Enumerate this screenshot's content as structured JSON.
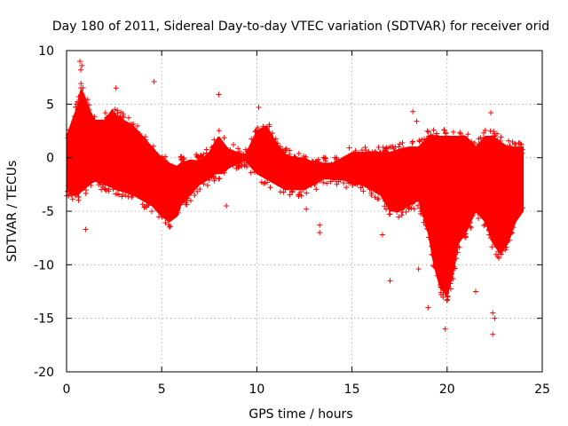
{
  "chart_data": {
    "type": "scatter",
    "title": "Day 180 of 2011, Sidereal Day-to-day VTEC variation (SDTVAR) for receiver orid",
    "xlabel": "GPS time / hours",
    "ylabel": "SDTVAR / TECUs",
    "xlim": [
      0,
      25
    ],
    "ylim": [
      -20,
      10
    ],
    "xticks": [
      0,
      5,
      10,
      15,
      20,
      25
    ],
    "yticks": [
      -20,
      -15,
      -10,
      -5,
      0,
      5,
      10
    ],
    "x_tick_labels": [
      "0",
      "5",
      "10",
      "15",
      "20",
      "25"
    ],
    "y_tick_labels": [
      "-20",
      "-15",
      "-10",
      "-5",
      "0",
      "5",
      "10"
    ],
    "grid": true,
    "marker": "+",
    "color": "#ff0000",
    "dense_band": {
      "description": "envelope of the dense point cloud (GPS hour, lower TECU, upper TECU)",
      "x": [
        0.0,
        0.3,
        0.6,
        0.75,
        0.9,
        1.2,
        1.5,
        2.0,
        2.4,
        2.6,
        3.0,
        3.5,
        4.0,
        4.5,
        5.0,
        5.4,
        5.8,
        6.0,
        6.5,
        7.0,
        7.5,
        7.8,
        8.0,
        8.2,
        8.5,
        9.0,
        9.4,
        10.0,
        10.5,
        11.0,
        11.5,
        12.0,
        12.5,
        13.0,
        13.5,
        14.0,
        14.5,
        15.0,
        15.5,
        16.0,
        16.5,
        17.0,
        17.5,
        18.0,
        18.5,
        19.0,
        19.3,
        19.6,
        20.0,
        20.3,
        20.6,
        21.0,
        21.5,
        22.0,
        22.4,
        22.8,
        23.2,
        23.6,
        24.0
      ],
      "lower": [
        -3.0,
        -3.5,
        -3.5,
        -3.2,
        -3.0,
        -2.5,
        -2.2,
        -2.5,
        -2.8,
        -3.0,
        -3.2,
        -3.5,
        -4.0,
        -4.5,
        -5.5,
        -6.0,
        -5.5,
        -4.5,
        -3.5,
        -2.5,
        -2.0,
        -1.5,
        -1.5,
        -1.5,
        -1.0,
        -0.5,
        -0.3,
        -1.5,
        -2.0,
        -2.5,
        -3.0,
        -3.0,
        -3.0,
        -2.5,
        -2.0,
        -2.0,
        -2.0,
        -2.5,
        -2.5,
        -3.0,
        -3.5,
        -5.0,
        -5.0,
        -4.5,
        -4.0,
        -7.0,
        -10.0,
        -12.0,
        -13.0,
        -11.0,
        -8.0,
        -7.0,
        -5.0,
        -6.0,
        -8.0,
        -9.0,
        -8.0,
        -6.0,
        -5.0
      ],
      "upper": [
        2.0,
        3.5,
        5.0,
        6.5,
        6.0,
        4.5,
        3.5,
        3.5,
        4.5,
        4.0,
        3.5,
        3.0,
        2.0,
        1.0,
        0.0,
        -0.5,
        -0.8,
        -0.5,
        -0.2,
        -0.3,
        0.5,
        1.5,
        2.0,
        1.5,
        0.8,
        0.5,
        0.3,
        2.5,
        3.0,
        1.5,
        0.3,
        0.0,
        0.0,
        -0.5,
        -0.5,
        -0.5,
        0.0,
        0.5,
        0.5,
        0.5,
        0.5,
        0.5,
        0.8,
        1.0,
        1.0,
        2.0,
        2.0,
        2.0,
        2.0,
        2.0,
        2.0,
        2.0,
        1.0,
        2.0,
        2.0,
        1.5,
        1.0,
        1.0,
        1.0
      ]
    },
    "outliers": [
      {
        "x": 0.7,
        "y": 9.0
      },
      {
        "x": 0.8,
        "y": 8.6
      },
      {
        "x": 0.75,
        "y": 8.2
      },
      {
        "x": 2.6,
        "y": 6.5
      },
      {
        "x": 4.6,
        "y": 7.1
      },
      {
        "x": 8.0,
        "y": 5.9
      },
      {
        "x": 10.1,
        "y": 4.7
      },
      {
        "x": 8.4,
        "y": -4.5
      },
      {
        "x": 1.0,
        "y": -6.7
      },
      {
        "x": 12.6,
        "y": -4.8
      },
      {
        "x": 13.3,
        "y": -6.3
      },
      {
        "x": 13.3,
        "y": -7.0
      },
      {
        "x": 17.0,
        "y": -11.5
      },
      {
        "x": 18.2,
        "y": 4.3
      },
      {
        "x": 18.4,
        "y": 3.4
      },
      {
        "x": 18.5,
        "y": -10.4
      },
      {
        "x": 19.0,
        "y": -14.0
      },
      {
        "x": 19.9,
        "y": -16.0
      },
      {
        "x": 21.5,
        "y": -12.5
      },
      {
        "x": 22.3,
        "y": 4.2
      },
      {
        "x": 22.4,
        "y": -14.5
      },
      {
        "x": 22.5,
        "y": -15.0
      },
      {
        "x": 22.4,
        "y": -16.5
      },
      {
        "x": 16.6,
        "y": -7.2
      },
      {
        "x": 9.2,
        "y": -0.8
      },
      {
        "x": 9.5,
        "y": 0.6
      }
    ]
  }
}
